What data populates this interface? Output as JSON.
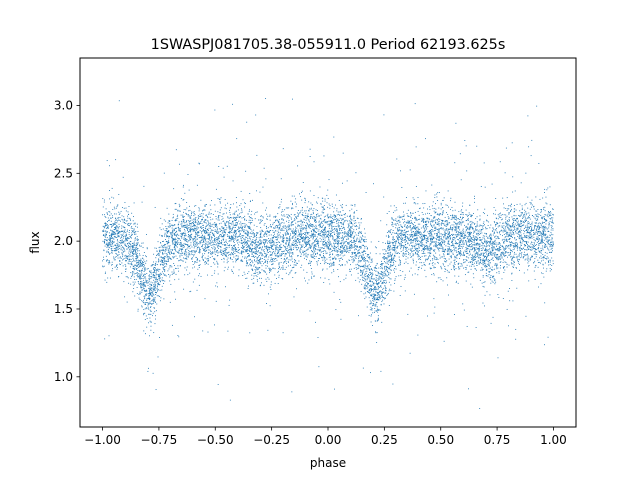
{
  "chart_data": {
    "type": "scatter",
    "title": "1SWASPJ081705.38-055911.0 Period 62193.625s",
    "xlabel": "phase",
    "ylabel": "flux",
    "xlim": [
      -1.1,
      1.1
    ],
    "ylim": [
      0.63,
      3.35
    ],
    "xticks": [
      -1.0,
      -0.75,
      -0.5,
      -0.25,
      0.0,
      0.25,
      0.5,
      0.75,
      1.0
    ],
    "xtick_labels": [
      "−1.00",
      "−0.75",
      "−0.50",
      "−0.25",
      "0.00",
      "0.25",
      "0.50",
      "0.75",
      "1.00"
    ],
    "yticks": [
      1.0,
      1.5,
      2.0,
      2.5,
      3.0
    ],
    "ytick_labels": [
      "1.0",
      "1.5",
      "2.0",
      "2.5",
      "3.0"
    ],
    "grid": false,
    "marker_color": "#1f77b4",
    "series": [
      {
        "phase_range": [
          -1.0,
          1.0
        ],
        "baseline_flux": 2.03,
        "primary_eclipse_phases": [
          -0.79,
          0.21
        ],
        "primary_eclipse_min_flux": 1.63,
        "secondary_dip_phases": [
          -0.29,
          0.71
        ],
        "secondary_dip_min_flux": 1.93,
        "scatter_sigma": 0.12,
        "points": 9000
      }
    ]
  }
}
